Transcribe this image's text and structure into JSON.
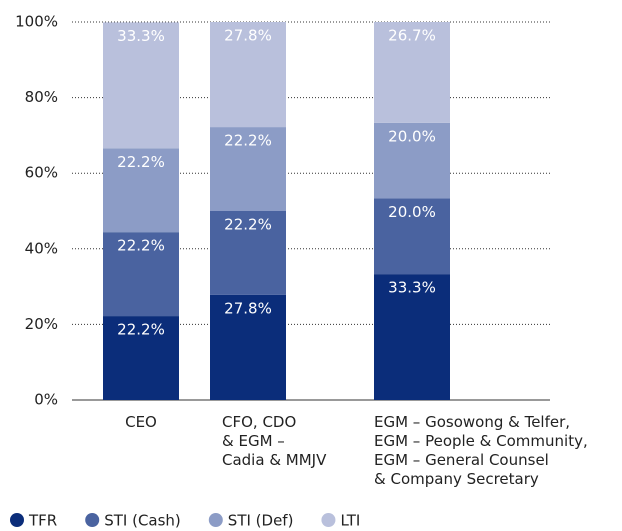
{
  "chart_data": {
    "type": "stacked_bar",
    "categories": [
      "CEO",
      "CFO, CDO\n& EGM –\nCadia & MMJV",
      "EGM – Gosowong & Telfer,\nEGM – People & Community,\nEGM – General Counsel\n& Company Secretary"
    ],
    "series": [
      {
        "name": "TFR",
        "color": "#0b2d7a",
        "values": [
          22.2,
          27.8,
          33.3
        ],
        "value_labels": [
          "22.2%",
          "27.8%",
          "33.3%"
        ]
      },
      {
        "name": "STI (Cash)",
        "color": "#4a63a0",
        "values": [
          22.2,
          22.2,
          20.0
        ],
        "value_labels": [
          "22.2%",
          "22.2%",
          "20.0%"
        ]
      },
      {
        "name": "STI (Def)",
        "color": "#8c9cc6",
        "values": [
          22.2,
          22.2,
          20.0
        ],
        "value_labels": [
          "22.2%",
          "22.2%",
          "20.0%"
        ]
      },
      {
        "name": "LTI",
        "color": "#b9c0dc",
        "values": [
          33.3,
          27.8,
          26.7
        ],
        "value_labels": [
          "33.3%",
          "27.8%",
          "26.7%"
        ]
      }
    ],
    "ylim": [
      0,
      100
    ],
    "yticks": [
      {
        "value": 0,
        "label": "0%"
      },
      {
        "value": 20,
        "label": "20%"
      },
      {
        "value": 40,
        "label": "40%"
      },
      {
        "value": 60,
        "label": "60%"
      },
      {
        "value": 80,
        "label": "80%"
      },
      {
        "value": 100,
        "label": "100%"
      }
    ],
    "grid": true
  }
}
